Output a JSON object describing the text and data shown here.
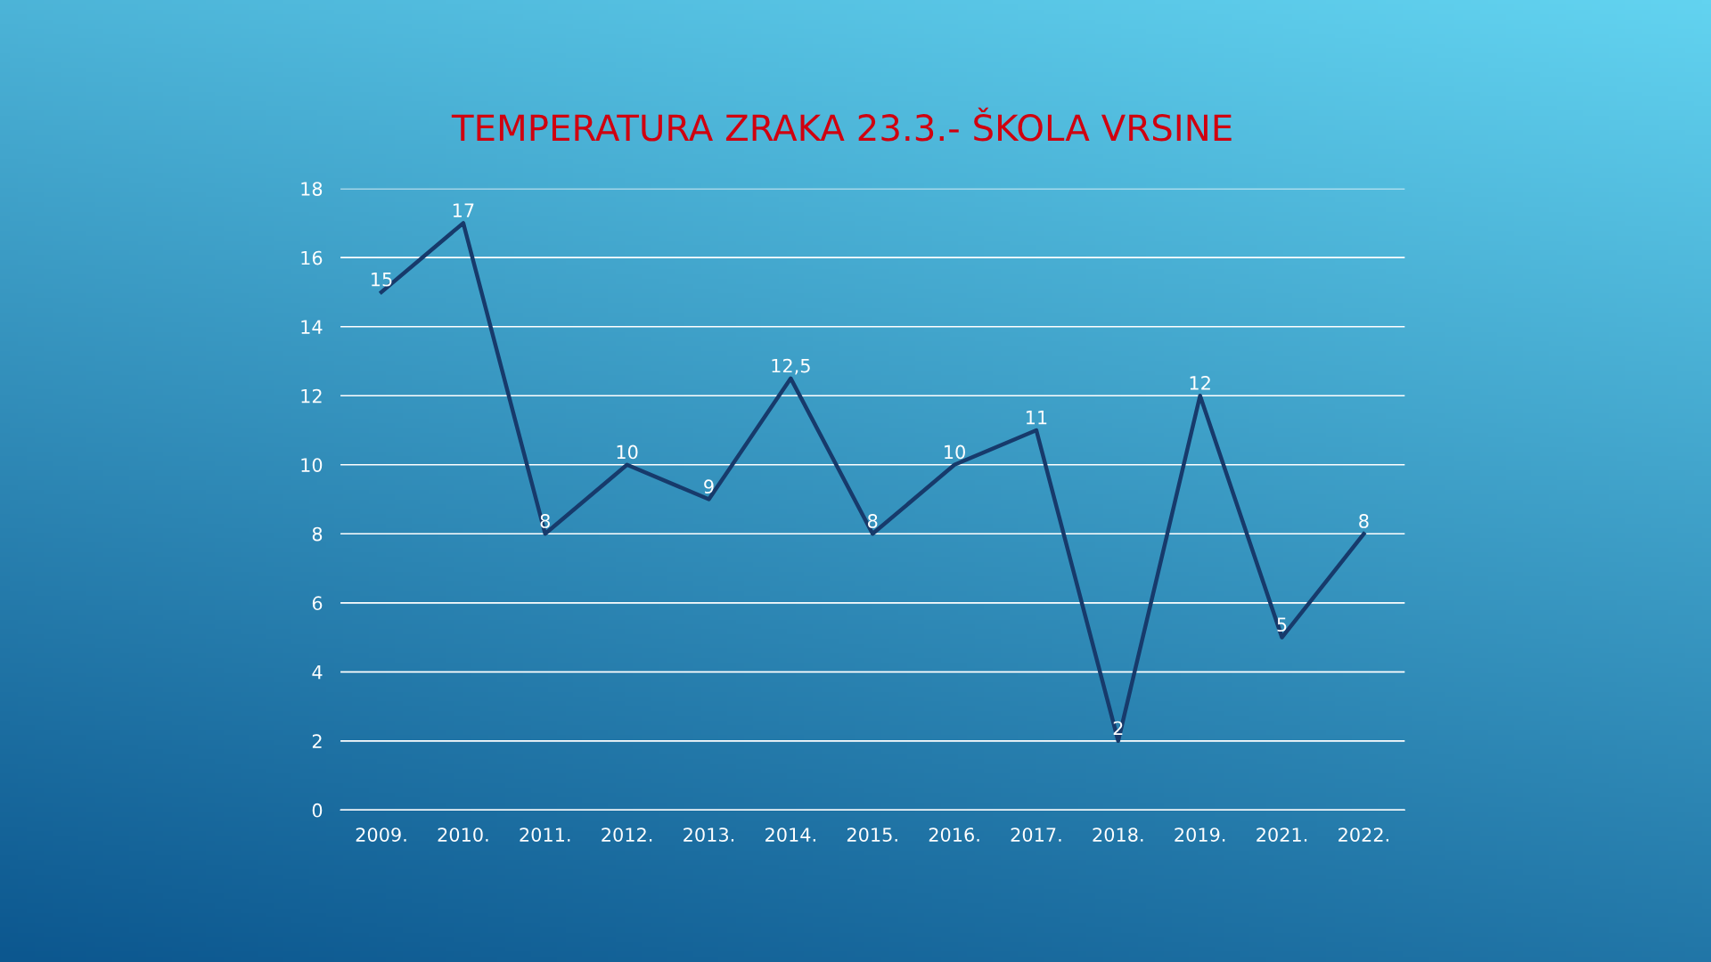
{
  "chart_data": {
    "type": "line",
    "title": "TEMPERATURA ZRAKA 23.3.- ŠKOLA VRSINE",
    "categories": [
      "2009.",
      "2010.",
      "2011.",
      "2012.",
      "2013.",
      "2014.",
      "2015.",
      "2016.",
      "2017.",
      "2018.",
      "2019.",
      "2021.",
      "2022."
    ],
    "series": [
      {
        "color": "#173a6b",
        "values": [
          15,
          17,
          8,
          10,
          9,
          12.5,
          8,
          10,
          11,
          2,
          12,
          5,
          8
        ],
        "value_labels": [
          "15",
          "17",
          "8",
          "10",
          "9",
          "12,5",
          "8",
          "10",
          "11",
          "2",
          "12",
          "5",
          "8"
        ]
      }
    ],
    "ylim": [
      0,
      18
    ],
    "yticks": [
      0,
      2,
      4,
      6,
      8,
      10,
      12,
      14,
      16,
      18
    ],
    "grid": "y",
    "legend": false,
    "marker": "none",
    "line_style": "solid"
  }
}
